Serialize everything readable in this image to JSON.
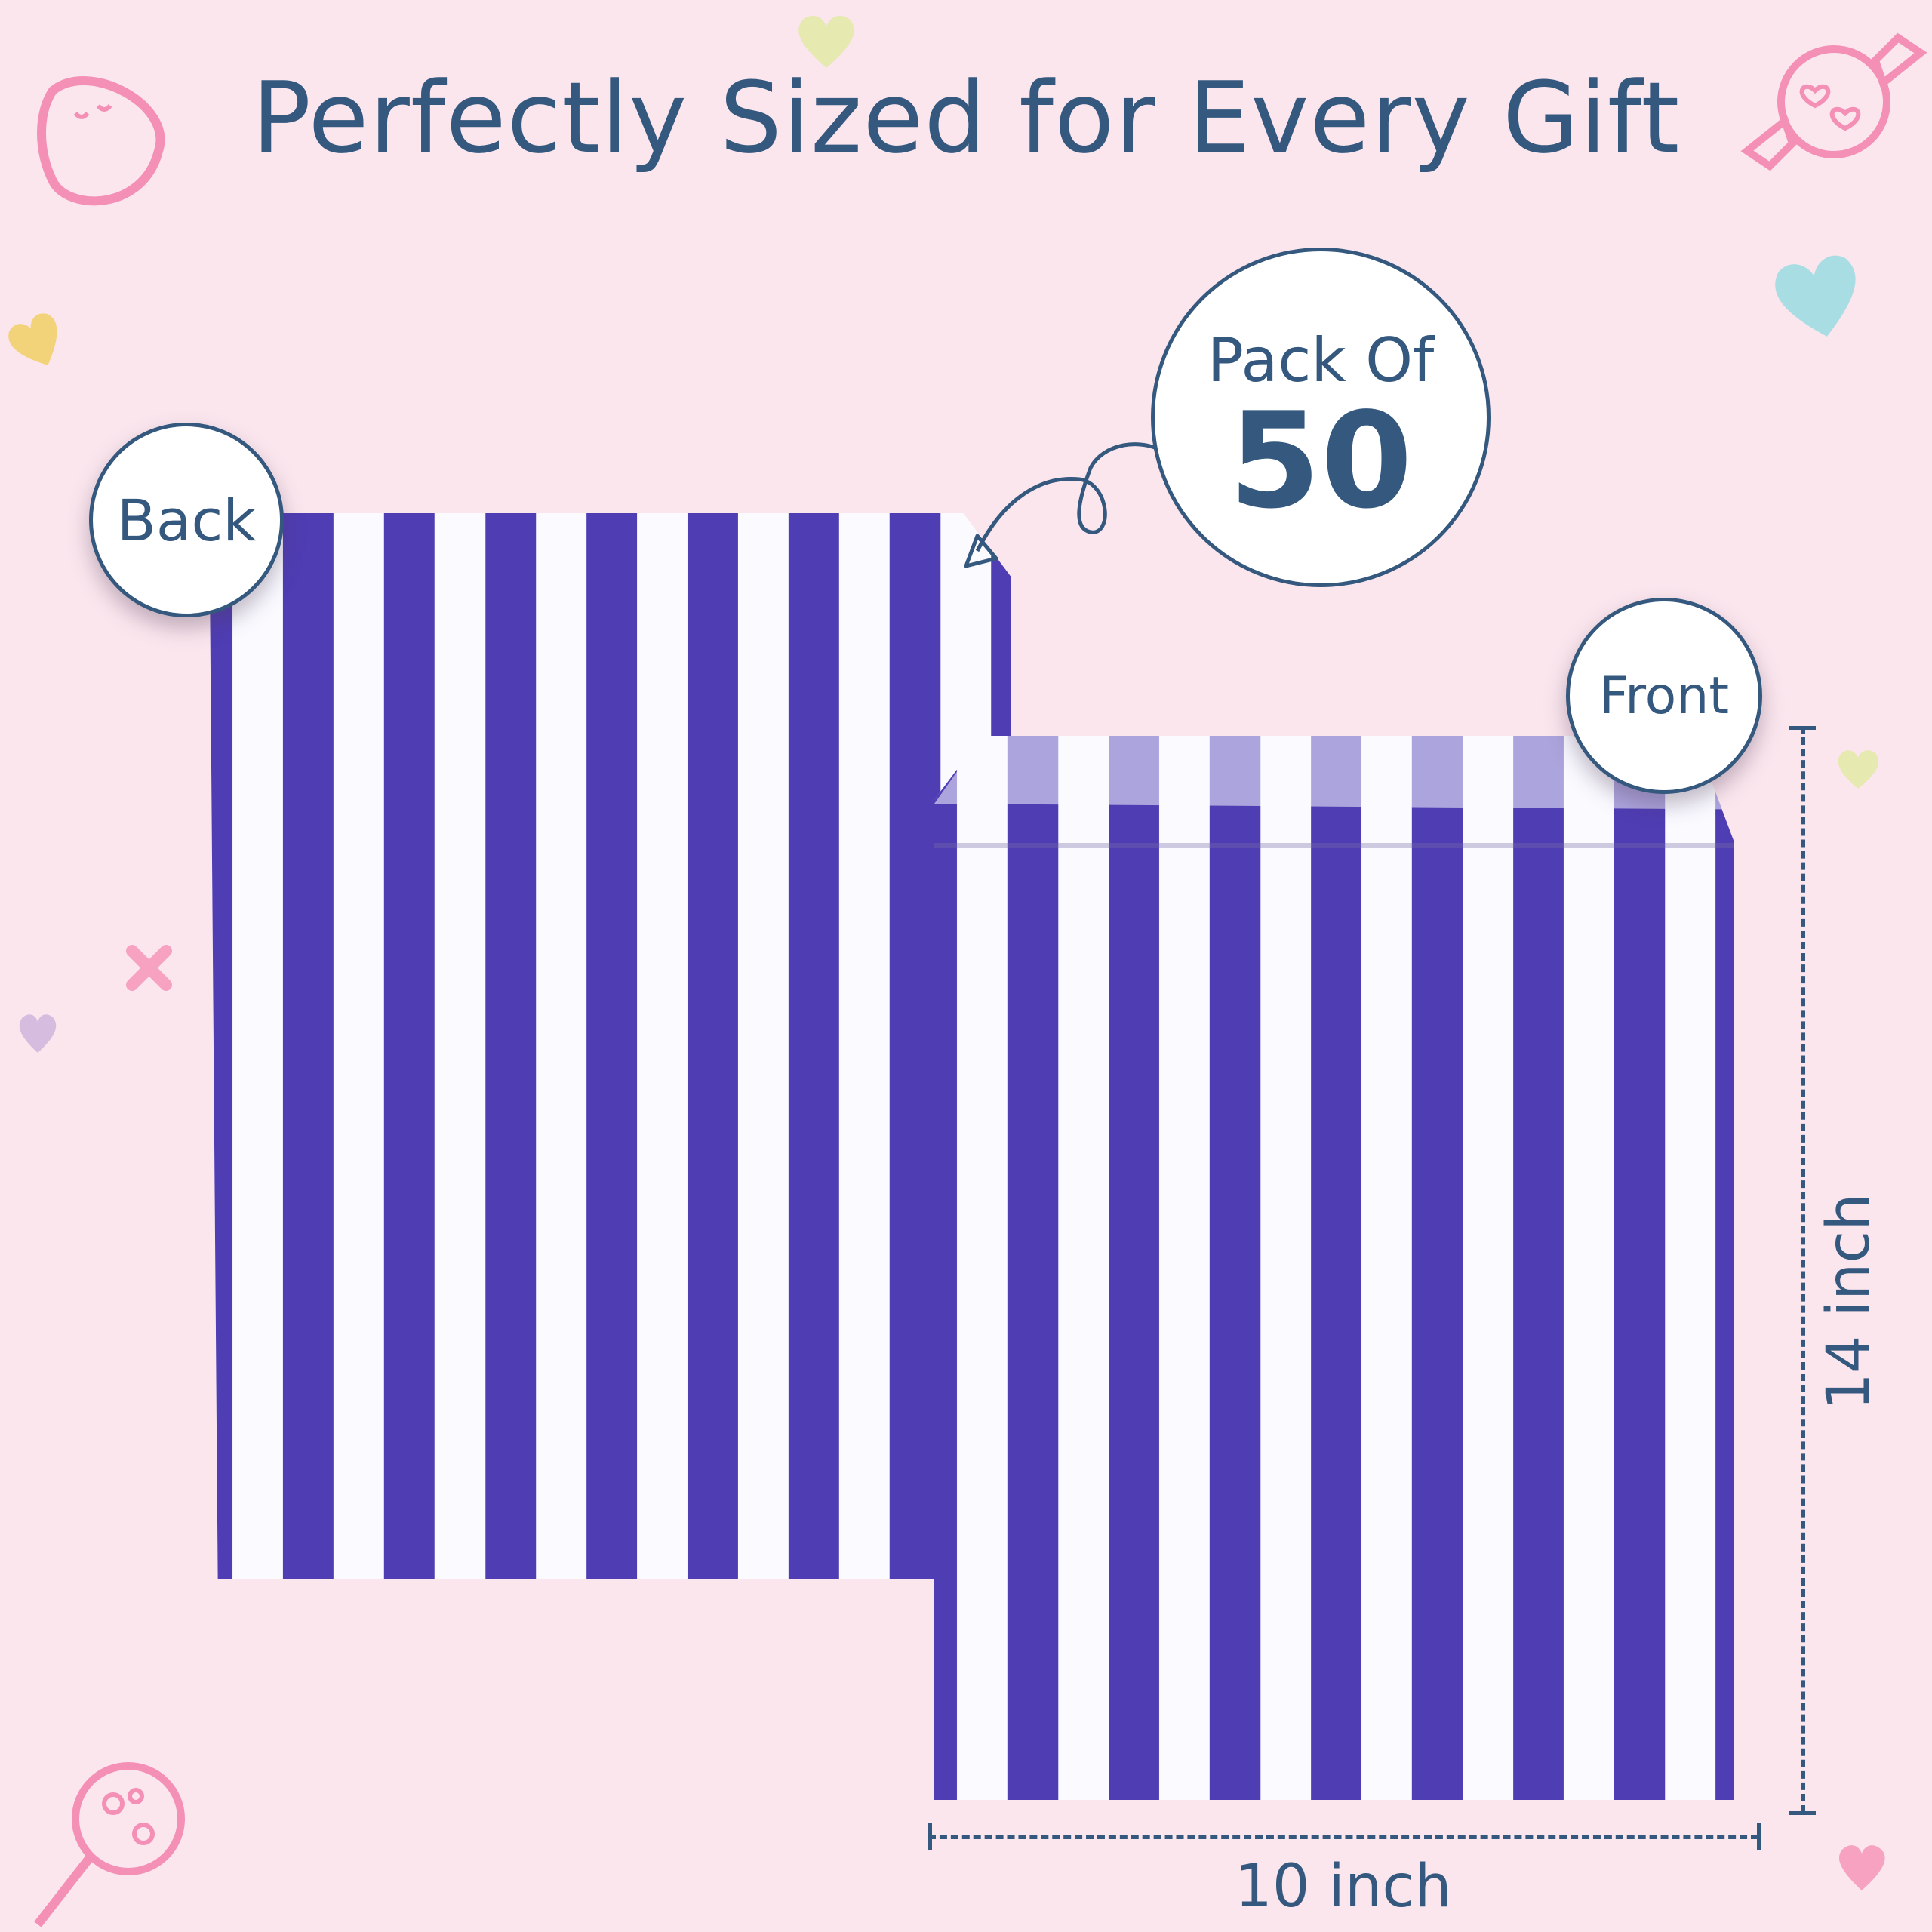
{
  "title": "Perfectly Sized for Every Gift",
  "badges": {
    "back": "Back",
    "front": "Front",
    "pack_label": "Pack Of",
    "pack_count": "50"
  },
  "dimensions": {
    "height": "14 inch",
    "width": "10 inch"
  },
  "colors": {
    "background": "#fbe6ee",
    "text": "#34587e",
    "stripe": "#4e3db3",
    "paper": "#fafaff"
  },
  "decorations": [
    "heart-icon",
    "strawberry-icon",
    "candy-icon",
    "lollipop-icon",
    "cross-icon"
  ]
}
